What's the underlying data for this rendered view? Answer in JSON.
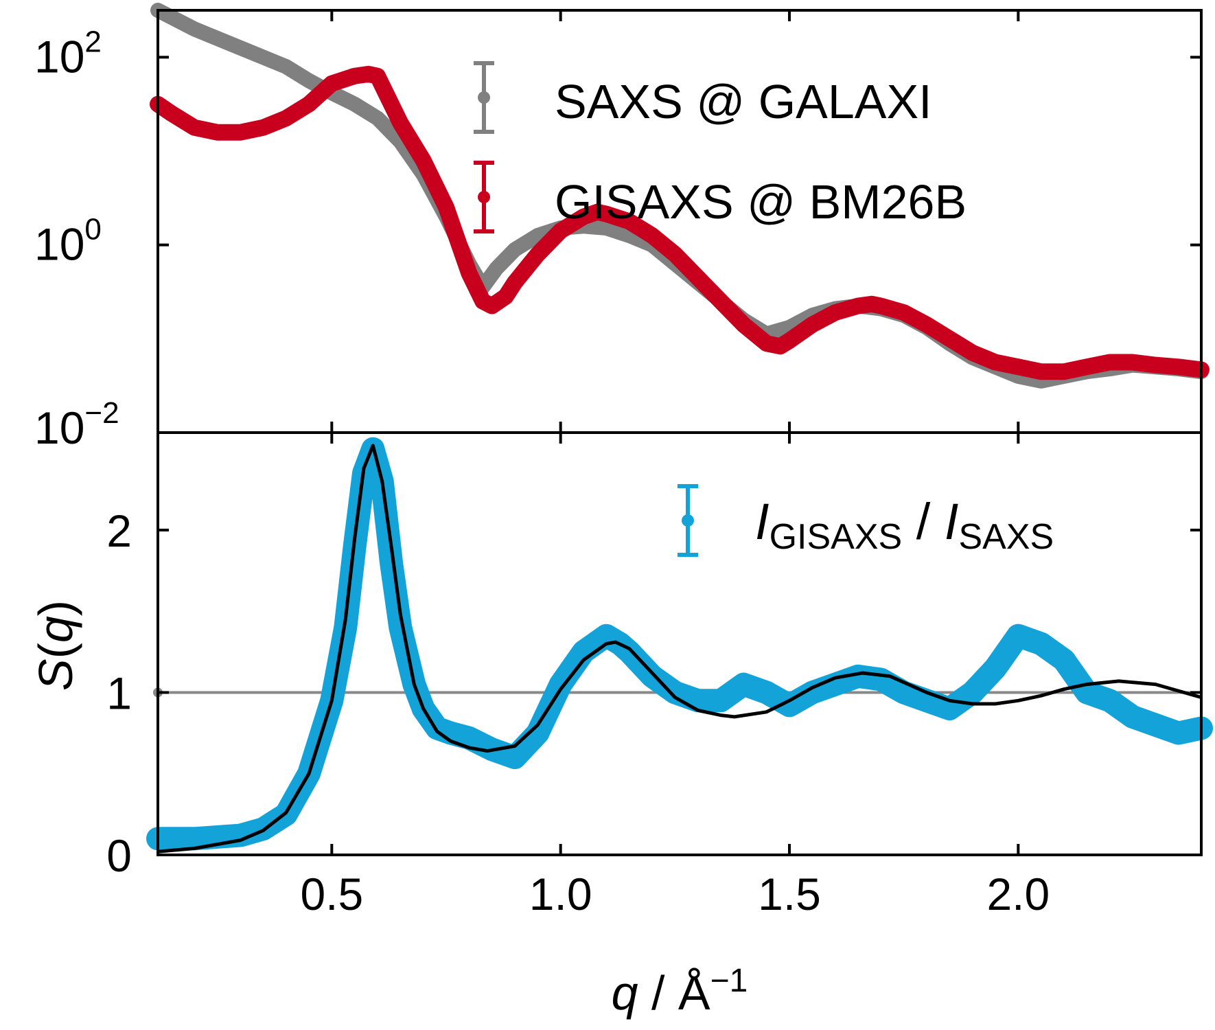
{
  "colors": {
    "saxs": "#808080",
    "gisaxs": "#c8001e",
    "ratio": "#13a3d9",
    "fit": "#000000",
    "reference": "#888888"
  },
  "chart_data": [
    {
      "type": "scatter",
      "yscale": "log",
      "xlim": [
        0.12,
        2.4
      ],
      "ylim_log10": [
        -2,
        2.5
      ],
      "yticks": [
        {
          "value": 2,
          "label": "10",
          "exp": "2"
        },
        {
          "value": 0,
          "label": "10",
          "exp": "0"
        },
        {
          "value": -2,
          "label": "10",
          "exp": "−2"
        }
      ],
      "legend": {
        "position": "top-right"
      },
      "series": [
        {
          "name": "SAXS @ GALAXI",
          "color_key": "saxs",
          "x": [
            0.12,
            0.2,
            0.3,
            0.4,
            0.45,
            0.5,
            0.55,
            0.6,
            0.65,
            0.7,
            0.75,
            0.8,
            0.83,
            0.86,
            0.9,
            0.95,
            1.0,
            1.05,
            1.1,
            1.15,
            1.2,
            1.25,
            1.3,
            1.35,
            1.4,
            1.45,
            1.5,
            1.55,
            1.6,
            1.65,
            1.7,
            1.75,
            1.8,
            1.85,
            1.9,
            1.95,
            2.0,
            2.05,
            2.1,
            2.15,
            2.2,
            2.25,
            2.3,
            2.35,
            2.4
          ],
          "log10y": [
            2.5,
            2.3,
            2.1,
            1.9,
            1.75,
            1.62,
            1.5,
            1.35,
            1.1,
            0.75,
            0.3,
            -0.2,
            -0.45,
            -0.25,
            -0.05,
            0.1,
            0.18,
            0.2,
            0.18,
            0.1,
            0.0,
            -0.2,
            -0.4,
            -0.6,
            -0.8,
            -0.95,
            -0.88,
            -0.75,
            -0.68,
            -0.65,
            -0.68,
            -0.75,
            -0.88,
            -1.05,
            -1.2,
            -1.3,
            -1.4,
            -1.45,
            -1.4,
            -1.35,
            -1.32,
            -1.28,
            -1.3,
            -1.32,
            -1.35
          ]
        },
        {
          "name": "GISAXS @ BM26B",
          "color_key": "gisaxs",
          "x": [
            0.12,
            0.15,
            0.2,
            0.25,
            0.3,
            0.35,
            0.4,
            0.45,
            0.5,
            0.55,
            0.58,
            0.6,
            0.62,
            0.65,
            0.7,
            0.75,
            0.8,
            0.83,
            0.85,
            0.88,
            0.9,
            0.95,
            1.0,
            1.05,
            1.08,
            1.1,
            1.15,
            1.2,
            1.25,
            1.3,
            1.35,
            1.4,
            1.45,
            1.48,
            1.5,
            1.55,
            1.6,
            1.65,
            1.68,
            1.7,
            1.75,
            1.8,
            1.85,
            1.9,
            1.95,
            2.0,
            2.05,
            2.1,
            2.15,
            2.2,
            2.25,
            2.3,
            2.35,
            2.4
          ],
          "log10y": [
            1.5,
            1.4,
            1.25,
            1.2,
            1.2,
            1.25,
            1.35,
            1.5,
            1.72,
            1.8,
            1.82,
            1.8,
            1.6,
            1.3,
            0.9,
            0.4,
            -0.3,
            -0.6,
            -0.65,
            -0.55,
            -0.4,
            -0.1,
            0.15,
            0.3,
            0.35,
            0.33,
            0.25,
            0.1,
            -0.1,
            -0.35,
            -0.6,
            -0.85,
            -1.05,
            -1.08,
            -1.02,
            -0.85,
            -0.72,
            -0.65,
            -0.63,
            -0.65,
            -0.72,
            -0.85,
            -1.0,
            -1.15,
            -1.25,
            -1.3,
            -1.35,
            -1.35,
            -1.3,
            -1.25,
            -1.25,
            -1.28,
            -1.3,
            -1.33
          ]
        }
      ]
    },
    {
      "type": "scatter",
      "xlim": [
        0.12,
        2.4
      ],
      "ylim": [
        0,
        2.6
      ],
      "xlabel": "q / Å−1",
      "ylabel": "S(q)",
      "xticks": [
        "0.5",
        "1.0",
        "1.5",
        "2.0"
      ],
      "yticks": [
        "0",
        "1",
        "2"
      ],
      "legend": {
        "position": "top-right"
      },
      "series": [
        {
          "name": "I GISAXS / I SAXS",
          "legend_parts": {
            "main1": "I",
            "sub1": "GISAXS",
            "sep": " / ",
            "main2": "I",
            "sub2": "SAXS"
          },
          "color_key": "ratio",
          "x": [
            0.12,
            0.2,
            0.3,
            0.35,
            0.4,
            0.45,
            0.5,
            0.53,
            0.55,
            0.57,
            0.59,
            0.61,
            0.63,
            0.65,
            0.68,
            0.7,
            0.73,
            0.76,
            0.8,
            0.85,
            0.9,
            0.95,
            1.0,
            1.05,
            1.1,
            1.13,
            1.15,
            1.2,
            1.25,
            1.3,
            1.35,
            1.4,
            1.45,
            1.5,
            1.55,
            1.6,
            1.65,
            1.7,
            1.75,
            1.8,
            1.85,
            1.9,
            1.95,
            2.0,
            2.05,
            2.1,
            2.15,
            2.2,
            2.25,
            2.3,
            2.35,
            2.4
          ],
          "y": [
            0.1,
            0.1,
            0.12,
            0.16,
            0.25,
            0.5,
            0.95,
            1.4,
            1.9,
            2.35,
            2.5,
            2.3,
            1.8,
            1.4,
            1.05,
            0.9,
            0.78,
            0.75,
            0.72,
            0.65,
            0.6,
            0.75,
            1.05,
            1.25,
            1.35,
            1.3,
            1.25,
            1.1,
            1.0,
            0.95,
            0.95,
            1.05,
            1.0,
            0.92,
            1.0,
            1.05,
            1.1,
            1.08,
            1.0,
            0.95,
            0.9,
            1.0,
            1.15,
            1.35,
            1.3,
            1.2,
            1.0,
            0.95,
            0.85,
            0.8,
            0.75,
            0.78
          ]
        },
        {
          "name": "fit",
          "color_key": "fit",
          "type": "line",
          "x": [
            0.12,
            0.2,
            0.3,
            0.35,
            0.4,
            0.45,
            0.5,
            0.53,
            0.55,
            0.57,
            0.59,
            0.61,
            0.63,
            0.65,
            0.68,
            0.7,
            0.73,
            0.76,
            0.8,
            0.84,
            0.9,
            0.95,
            1.0,
            1.05,
            1.1,
            1.12,
            1.15,
            1.2,
            1.25,
            1.3,
            1.35,
            1.38,
            1.45,
            1.5,
            1.55,
            1.6,
            1.66,
            1.72,
            1.8,
            1.85,
            1.9,
            1.95,
            2.0,
            2.05,
            2.1,
            2.15,
            2.22,
            2.3,
            2.4
          ],
          "y": [
            0.02,
            0.04,
            0.09,
            0.15,
            0.26,
            0.5,
            0.95,
            1.45,
            1.95,
            2.38,
            2.52,
            2.3,
            1.9,
            1.48,
            1.05,
            0.9,
            0.76,
            0.7,
            0.66,
            0.64,
            0.67,
            0.8,
            1.02,
            1.2,
            1.3,
            1.31,
            1.27,
            1.12,
            0.97,
            0.89,
            0.86,
            0.85,
            0.88,
            0.95,
            1.03,
            1.09,
            1.12,
            1.1,
            1.0,
            0.95,
            0.93,
            0.93,
            0.95,
            0.98,
            1.02,
            1.05,
            1.07,
            1.05,
            0.97
          ]
        },
        {
          "name": "reference",
          "color_key": "reference",
          "type": "hline",
          "y": 1
        }
      ]
    }
  ]
}
